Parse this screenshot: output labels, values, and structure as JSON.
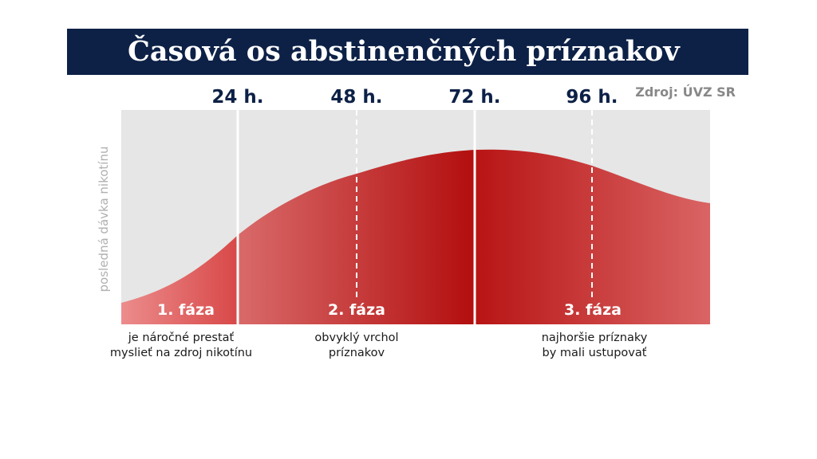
{
  "title": "Časová os abstinenčných príznakov",
  "source": "Zdroj: ÚVZ SR",
  "y_label": "posledná dávka nikotínu",
  "time_marks": [
    "24 h.",
    "48 h.",
    "72 h.",
    "96 h."
  ],
  "phases": [
    {
      "label": "1. fáza",
      "description": [
        "je náročné prestať",
        "myslieť na zdroj nikotínu"
      ]
    },
    {
      "label": "2. fáza",
      "description": [
        "obvyklý vrchol",
        "príznakov"
      ]
    },
    {
      "label": "3. fáza",
      "description": [
        "najhoršie príznaky",
        "by mali ustupovať"
      ]
    }
  ]
}
